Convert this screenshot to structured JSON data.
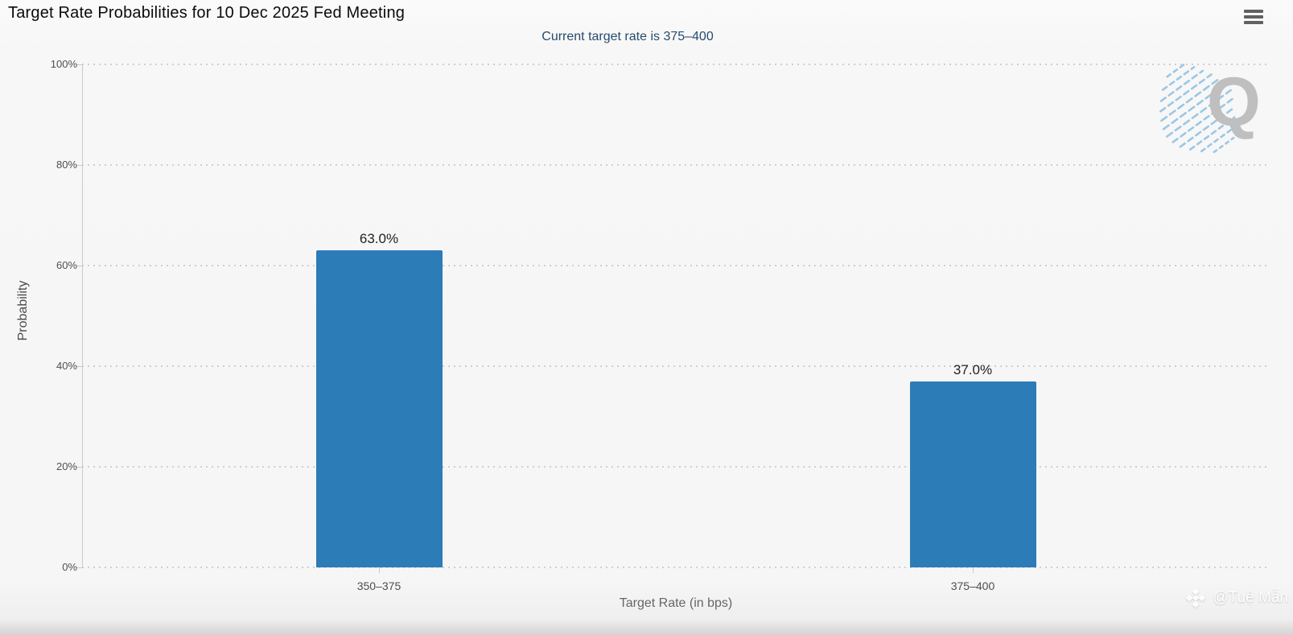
{
  "chart_data": {
    "type": "bar",
    "title": "Target Rate Probabilities for 10 Dec 2025 Fed Meeting",
    "subtitle": "Current target rate is 375–400",
    "categories": [
      "350–375",
      "375–400"
    ],
    "values": [
      63.0,
      37.0
    ],
    "data_labels": [
      "63.0%",
      "37.0%"
    ],
    "xlabel": "Target Rate (in bps)",
    "ylabel": "Probability",
    "ylim": [
      0,
      100
    ],
    "yticks": [
      0,
      20,
      40,
      60,
      80,
      100
    ],
    "ytick_labels": [
      "0%",
      "20%",
      "40%",
      "60%",
      "80%",
      "100%"
    ],
    "legend": "none",
    "grid": "horizontal-dotted",
    "bar_color": "#2c7cb8",
    "gridline_color": "#cfcfcf",
    "subtitle_color": "#274b6d"
  },
  "header": {
    "menu_icon": "hamburger-menu"
  },
  "watermarks": {
    "logo_letter": "Q",
    "credit": "@Tuệ Mẫn"
  }
}
